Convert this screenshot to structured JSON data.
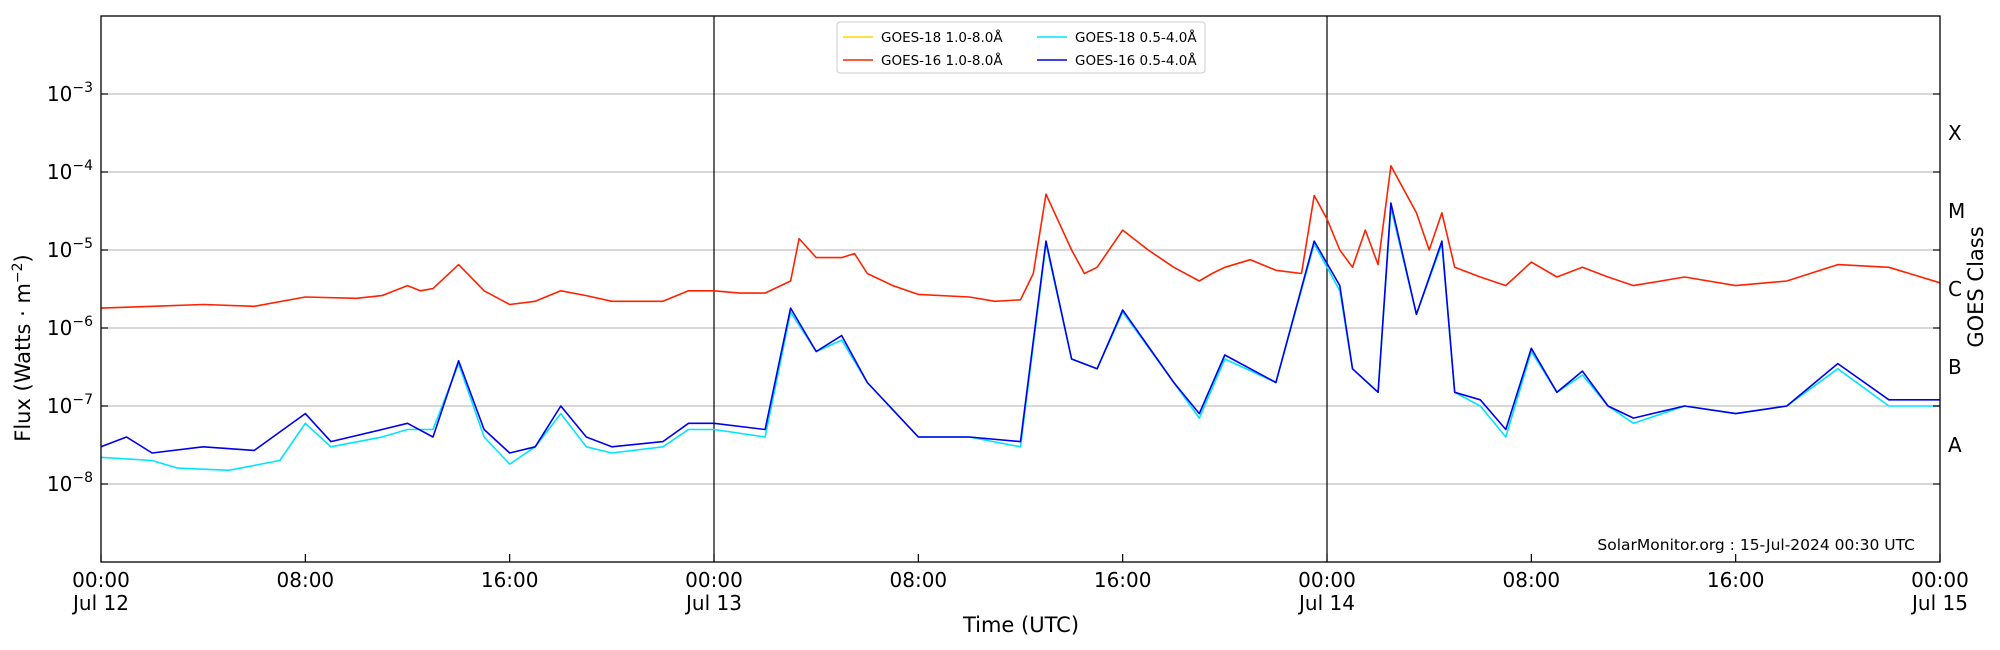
{
  "chart_data": {
    "type": "line",
    "title": "",
    "xlabel": "Time (UTC)",
    "ylabel_main": "Flux (Watts · m",
    "ylabel_sup": "−2",
    "ylabel_close": ")",
    "ylabel_right": "GOES Class",
    "y_scale": "log",
    "ylim": [
      1e-09,
      0.01
    ],
    "xlim": [
      "2024-07-12T00:00",
      "2024-07-15T00:00"
    ],
    "x_ticks": [
      {
        "t": "2024-07-12T00:00",
        "line1": "00:00",
        "line2": "Jul 12"
      },
      {
        "t": "2024-07-12T08:00",
        "line1": "08:00",
        "line2": ""
      },
      {
        "t": "2024-07-12T16:00",
        "line1": "16:00",
        "line2": ""
      },
      {
        "t": "2024-07-13T00:00",
        "line1": "00:00",
        "line2": "Jul 13"
      },
      {
        "t": "2024-07-13T08:00",
        "line1": "08:00",
        "line2": ""
      },
      {
        "t": "2024-07-13T16:00",
        "line1": "16:00",
        "line2": ""
      },
      {
        "t": "2024-07-14T00:00",
        "line1": "00:00",
        "line2": "Jul 14"
      },
      {
        "t": "2024-07-14T08:00",
        "line1": "08:00",
        "line2": ""
      },
      {
        "t": "2024-07-14T16:00",
        "line1": "16:00",
        "line2": ""
      },
      {
        "t": "2024-07-15T00:00",
        "line1": "00:00",
        "line2": "Jul 15"
      }
    ],
    "y_ticks": [
      {
        "v": 1e-08,
        "base": "10",
        "exp": "−8"
      },
      {
        "v": 1e-07,
        "base": "10",
        "exp": "−7"
      },
      {
        "v": 1e-06,
        "base": "10",
        "exp": "−6"
      },
      {
        "v": 1e-05,
        "base": "10",
        "exp": "−5"
      },
      {
        "v": 0.0001,
        "base": "10",
        "exp": "−4"
      },
      {
        "v": 0.001,
        "base": "10",
        "exp": "−3"
      }
    ],
    "goes_classes": [
      {
        "label": "A",
        "v": 1e-08
      },
      {
        "label": "B",
        "v": 1e-07
      },
      {
        "label": "C",
        "v": 1e-06
      },
      {
        "label": "M",
        "v": 1e-05
      },
      {
        "label": "X",
        "v": 0.0001
      }
    ],
    "day_lines": [
      "2024-07-13T00:00",
      "2024-07-14T00:00"
    ],
    "grid": "horizontal",
    "legend_position": "top-center",
    "annotation": "SolarMonitor.org : 15-Jul-2024 00:30 UTC",
    "series": [
      {
        "name": "GOES-18 1.0-8.0Å",
        "color": "#ffd700",
        "points": []
      },
      {
        "name": "GOES-16 1.0-8.0Å",
        "color": "#ff2200",
        "points": [
          [
            "2024-07-12T00:00",
            1.8e-06
          ],
          [
            "2024-07-12T02:00",
            1.9e-06
          ],
          [
            "2024-07-12T04:00",
            2e-06
          ],
          [
            "2024-07-12T06:00",
            1.9e-06
          ],
          [
            "2024-07-12T08:00",
            2.5e-06
          ],
          [
            "2024-07-12T10:00",
            2.4e-06
          ],
          [
            "2024-07-12T11:00",
            2.6e-06
          ],
          [
            "2024-07-12T12:00",
            3.5e-06
          ],
          [
            "2024-07-12T12:30",
            3e-06
          ],
          [
            "2024-07-12T13:00",
            3.2e-06
          ],
          [
            "2024-07-12T14:00",
            6.5e-06
          ],
          [
            "2024-07-12T15:00",
            3e-06
          ],
          [
            "2024-07-12T16:00",
            2e-06
          ],
          [
            "2024-07-12T17:00",
            2.2e-06
          ],
          [
            "2024-07-12T18:00",
            3e-06
          ],
          [
            "2024-07-12T19:00",
            2.6e-06
          ],
          [
            "2024-07-12T20:00",
            2.2e-06
          ],
          [
            "2024-07-12T22:00",
            2.2e-06
          ],
          [
            "2024-07-12T23:00",
            3e-06
          ],
          [
            "2024-07-13T00:00",
            3e-06
          ],
          [
            "2024-07-13T01:00",
            2.8e-06
          ],
          [
            "2024-07-13T02:00",
            2.8e-06
          ],
          [
            "2024-07-13T03:00",
            4e-06
          ],
          [
            "2024-07-13T03:20",
            1.4e-05
          ],
          [
            "2024-07-13T04:00",
            8e-06
          ],
          [
            "2024-07-13T05:00",
            8e-06
          ],
          [
            "2024-07-13T05:30",
            9e-06
          ],
          [
            "2024-07-13T06:00",
            5e-06
          ],
          [
            "2024-07-13T07:00",
            3.5e-06
          ],
          [
            "2024-07-13T08:00",
            2.7e-06
          ],
          [
            "2024-07-13T10:00",
            2.5e-06
          ],
          [
            "2024-07-13T11:00",
            2.2e-06
          ],
          [
            "2024-07-13T12:00",
            2.3e-06
          ],
          [
            "2024-07-13T12:30",
            5e-06
          ],
          [
            "2024-07-13T13:00",
            5.2e-05
          ],
          [
            "2024-07-13T14:00",
            1e-05
          ],
          [
            "2024-07-13T14:30",
            5e-06
          ],
          [
            "2024-07-13T15:00",
            6e-06
          ],
          [
            "2024-07-13T16:00",
            1.8e-05
          ],
          [
            "2024-07-13T17:00",
            1e-05
          ],
          [
            "2024-07-13T18:00",
            6e-06
          ],
          [
            "2024-07-13T19:00",
            4e-06
          ],
          [
            "2024-07-13T19:30",
            5e-06
          ],
          [
            "2024-07-13T20:00",
            6e-06
          ],
          [
            "2024-07-13T21:00",
            7.5e-06
          ],
          [
            "2024-07-13T22:00",
            5.5e-06
          ],
          [
            "2024-07-13T23:00",
            5e-06
          ],
          [
            "2024-07-13T23:30",
            5e-05
          ],
          [
            "2024-07-14T00:00",
            2.5e-05
          ],
          [
            "2024-07-14T00:30",
            1e-05
          ],
          [
            "2024-07-14T01:00",
            6e-06
          ],
          [
            "2024-07-14T01:30",
            1.8e-05
          ],
          [
            "2024-07-14T02:00",
            6.5e-06
          ],
          [
            "2024-07-14T02:30",
            0.00012
          ],
          [
            "2024-07-14T03:30",
            3e-05
          ],
          [
            "2024-07-14T04:00",
            1e-05
          ],
          [
            "2024-07-14T04:30",
            3e-05
          ],
          [
            "2024-07-14T05:00",
            6e-06
          ],
          [
            "2024-07-14T06:00",
            4.5e-06
          ],
          [
            "2024-07-14T07:00",
            3.5e-06
          ],
          [
            "2024-07-14T08:00",
            7e-06
          ],
          [
            "2024-07-14T09:00",
            4.5e-06
          ],
          [
            "2024-07-14T10:00",
            6e-06
          ],
          [
            "2024-07-14T11:00",
            4.5e-06
          ],
          [
            "2024-07-14T12:00",
            3.5e-06
          ],
          [
            "2024-07-14T14:00",
            4.5e-06
          ],
          [
            "2024-07-14T16:00",
            3.5e-06
          ],
          [
            "2024-07-14T18:00",
            4e-06
          ],
          [
            "2024-07-14T20:00",
            6.5e-06
          ],
          [
            "2024-07-14T22:00",
            6e-06
          ],
          [
            "2024-07-15T00:00",
            3.8e-06
          ]
        ]
      },
      {
        "name": "GOES-18 0.5-4.0Å",
        "color": "#00e5ff",
        "points": [
          [
            "2024-07-12T00:00",
            2.2e-08
          ],
          [
            "2024-07-12T02:00",
            2e-08
          ],
          [
            "2024-07-12T03:00",
            1.6e-08
          ],
          [
            "2024-07-12T05:00",
            1.5e-08
          ],
          [
            "2024-07-12T07:00",
            2e-08
          ],
          [
            "2024-07-12T08:00",
            6e-08
          ],
          [
            "2024-07-12T09:00",
            3e-08
          ],
          [
            "2024-07-12T11:00",
            4e-08
          ],
          [
            "2024-07-12T12:00",
            5e-08
          ],
          [
            "2024-07-12T13:00",
            5e-08
          ],
          [
            "2024-07-12T14:00",
            3.5e-07
          ],
          [
            "2024-07-12T15:00",
            4e-08
          ],
          [
            "2024-07-12T16:00",
            1.8e-08
          ],
          [
            "2024-07-12T17:00",
            3e-08
          ],
          [
            "2024-07-12T18:00",
            8e-08
          ],
          [
            "2024-07-12T19:00",
            3e-08
          ],
          [
            "2024-07-12T20:00",
            2.5e-08
          ],
          [
            "2024-07-12T22:00",
            3e-08
          ],
          [
            "2024-07-12T23:00",
            5e-08
          ],
          [
            "2024-07-13T00:00",
            5e-08
          ],
          [
            "2024-07-13T02:00",
            4e-08
          ],
          [
            "2024-07-13T03:00",
            1.6e-06
          ],
          [
            "2024-07-13T04:00",
            5e-07
          ],
          [
            "2024-07-13T05:00",
            7e-07
          ],
          [
            "2024-07-13T06:00",
            2e-07
          ],
          [
            "2024-07-13T08:00",
            4e-08
          ],
          [
            "2024-07-13T10:00",
            4e-08
          ],
          [
            "2024-07-13T12:00",
            3e-08
          ],
          [
            "2024-07-13T13:00",
            1.2e-05
          ],
          [
            "2024-07-13T14:00",
            4e-07
          ],
          [
            "2024-07-13T15:00",
            3e-07
          ],
          [
            "2024-07-13T16:00",
            1.6e-06
          ],
          [
            "2024-07-13T18:00",
            2e-07
          ],
          [
            "2024-07-13T19:00",
            7e-08
          ],
          [
            "2024-07-13T20:00",
            4e-07
          ],
          [
            "2024-07-13T22:00",
            2e-07
          ],
          [
            "2024-07-13T23:30",
            1.2e-05
          ],
          [
            "2024-07-14T00:30",
            3e-06
          ],
          [
            "2024-07-14T01:00",
            3e-07
          ],
          [
            "2024-07-14T02:00",
            1.5e-07
          ],
          [
            "2024-07-14T02:30",
            3.5e-05
          ],
          [
            "2024-07-14T03:30",
            1.5e-06
          ],
          [
            "2024-07-14T04:30",
            1.2e-05
          ],
          [
            "2024-07-14T05:00",
            1.5e-07
          ],
          [
            "2024-07-14T06:00",
            1e-07
          ],
          [
            "2024-07-14T07:00",
            4e-08
          ],
          [
            "2024-07-14T08:00",
            5e-07
          ],
          [
            "2024-07-14T09:00",
            1.5e-07
          ],
          [
            "2024-07-14T10:00",
            2.5e-07
          ],
          [
            "2024-07-14T11:00",
            1e-07
          ],
          [
            "2024-07-14T12:00",
            6e-08
          ],
          [
            "2024-07-14T14:00",
            1e-07
          ],
          [
            "2024-07-14T16:00",
            8e-08
          ],
          [
            "2024-07-14T18:00",
            1e-07
          ],
          [
            "2024-07-14T20:00",
            3e-07
          ],
          [
            "2024-07-14T22:00",
            1e-07
          ],
          [
            "2024-07-15T00:00",
            1e-07
          ]
        ]
      },
      {
        "name": "GOES-16 0.5-4.0Å",
        "color": "#0000ee",
        "points": [
          [
            "2024-07-12T00:00",
            3e-08
          ],
          [
            "2024-07-12T01:00",
            4e-08
          ],
          [
            "2024-07-12T02:00",
            2.5e-08
          ],
          [
            "2024-07-12T04:00",
            3e-08
          ],
          [
            "2024-07-12T06:00",
            2.7e-08
          ],
          [
            "2024-07-12T08:00",
            8e-08
          ],
          [
            "2024-07-12T09:00",
            3.5e-08
          ],
          [
            "2024-07-12T11:00",
            5e-08
          ],
          [
            "2024-07-12T12:00",
            6e-08
          ],
          [
            "2024-07-12T13:00",
            4e-08
          ],
          [
            "2024-07-12T14:00",
            3.8e-07
          ],
          [
            "2024-07-12T15:00",
            5e-08
          ],
          [
            "2024-07-12T16:00",
            2.5e-08
          ],
          [
            "2024-07-12T17:00",
            3e-08
          ],
          [
            "2024-07-12T18:00",
            1e-07
          ],
          [
            "2024-07-12T19:00",
            4e-08
          ],
          [
            "2024-07-12T20:00",
            3e-08
          ],
          [
            "2024-07-12T22:00",
            3.5e-08
          ],
          [
            "2024-07-12T23:00",
            6e-08
          ],
          [
            "2024-07-13T00:00",
            6e-08
          ],
          [
            "2024-07-13T02:00",
            5e-08
          ],
          [
            "2024-07-13T03:00",
            1.8e-06
          ],
          [
            "2024-07-13T04:00",
            5e-07
          ],
          [
            "2024-07-13T05:00",
            8e-07
          ],
          [
            "2024-07-13T06:00",
            2e-07
          ],
          [
            "2024-07-13T08:00",
            4e-08
          ],
          [
            "2024-07-13T10:00",
            4e-08
          ],
          [
            "2024-07-13T12:00",
            3.5e-08
          ],
          [
            "2024-07-13T13:00",
            1.3e-05
          ],
          [
            "2024-07-13T14:00",
            4e-07
          ],
          [
            "2024-07-13T15:00",
            3e-07
          ],
          [
            "2024-07-13T16:00",
            1.7e-06
          ],
          [
            "2024-07-13T18:00",
            2e-07
          ],
          [
            "2024-07-13T19:00",
            8e-08
          ],
          [
            "2024-07-13T20:00",
            4.5e-07
          ],
          [
            "2024-07-13T22:00",
            2e-07
          ],
          [
            "2024-07-13T23:30",
            1.3e-05
          ],
          [
            "2024-07-14T00:30",
            3.5e-06
          ],
          [
            "2024-07-14T01:00",
            3e-07
          ],
          [
            "2024-07-14T02:00",
            1.5e-07
          ],
          [
            "2024-07-14T02:30",
            4e-05
          ],
          [
            "2024-07-14T03:30",
            1.5e-06
          ],
          [
            "2024-07-14T04:30",
            1.3e-05
          ],
          [
            "2024-07-14T05:00",
            1.5e-07
          ],
          [
            "2024-07-14T06:00",
            1.2e-07
          ],
          [
            "2024-07-14T07:00",
            5e-08
          ],
          [
            "2024-07-14T08:00",
            5.5e-07
          ],
          [
            "2024-07-14T09:00",
            1.5e-07
          ],
          [
            "2024-07-14T10:00",
            2.8e-07
          ],
          [
            "2024-07-14T11:00",
            1e-07
          ],
          [
            "2024-07-14T12:00",
            7e-08
          ],
          [
            "2024-07-14T14:00",
            1e-07
          ],
          [
            "2024-07-14T16:00",
            8e-08
          ],
          [
            "2024-07-14T18:00",
            1e-07
          ],
          [
            "2024-07-14T20:00",
            3.5e-07
          ],
          [
            "2024-07-14T22:00",
            1.2e-07
          ],
          [
            "2024-07-15T00:00",
            1.2e-07
          ]
        ]
      }
    ]
  }
}
